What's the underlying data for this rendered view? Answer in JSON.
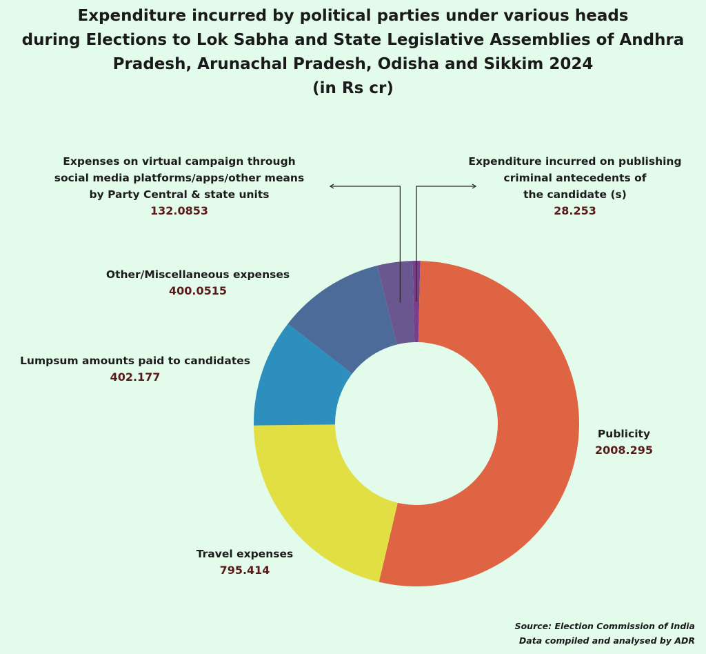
{
  "title": {
    "lines": [
      "Expenditure incurred by political parties under various heads",
      "during Elections to Lok Sabha and State Legislative Assemblies of Andhra",
      "Pradesh, Arunachal Pradesh, Odisha and Sikkim 2024",
      "(in Rs cr)"
    ]
  },
  "chart_data": {
    "type": "pie",
    "variant": "donut",
    "title": "Expenditure incurred by political parties under various heads during Elections to Lok Sabha and State Legislative Assemblies of Andhra Pradesh, Arunachal Pradesh, Odisha and Sikkim 2024 (in Rs cr)",
    "unit": "Rs cr",
    "slices": [
      {
        "key": "criminal",
        "label_lines": [
          "Expenditure incurred on publishing",
          "criminal antecedents of",
          "the candidate (s)"
        ],
        "value": 28.253,
        "value_text": "28.253",
        "color": "#7a3d8c"
      },
      {
        "key": "publicity",
        "label_lines": [
          "Publicity"
        ],
        "value": 2008.295,
        "value_text": "2008.295",
        "color": "#de6444"
      },
      {
        "key": "travel",
        "label_lines": [
          "Travel expenses"
        ],
        "value": 795.414,
        "value_text": "795.414",
        "color": "#e2df45"
      },
      {
        "key": "lumpsum",
        "label_lines": [
          "Lumpsum amounts paid to candidates"
        ],
        "value": 402.177,
        "value_text": "402.177",
        "color": "#2d8fbd"
      },
      {
        "key": "misc",
        "label_lines": [
          "Other/Miscellaneous expenses"
        ],
        "value": 400.0515,
        "value_text": "400.0515",
        "color": "#4d6b99"
      },
      {
        "key": "virtual",
        "label_lines": [
          "Expenses on virtual campaign through",
          "social media platforms/apps/other means",
          "by Party Central & state units"
        ],
        "value": 132.0853,
        "value_text": "132.0853",
        "color": "#6a578f"
      }
    ],
    "legend": "none (direct labels)"
  },
  "source": {
    "line1": "Source: Election Commission of India",
    "line2": "Data compiled and analysed by ADR"
  }
}
